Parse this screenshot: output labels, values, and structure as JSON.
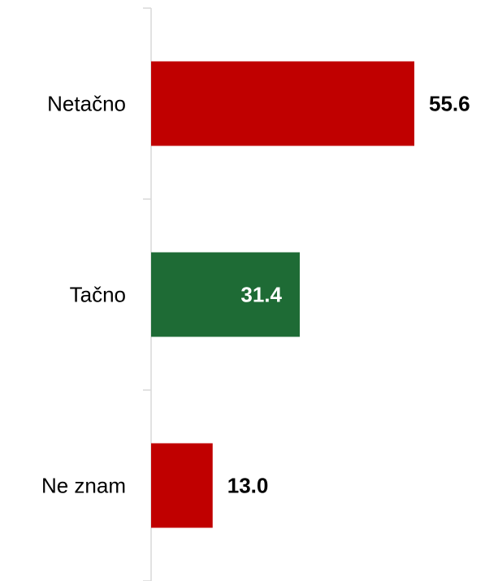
{
  "chart_data": {
    "type": "barh",
    "categories": [
      "Netačno",
      "Tačno",
      "Ne znam"
    ],
    "values": [
      55.6,
      31.4,
      13.0
    ],
    "value_labels": [
      "55.6",
      "31.4",
      "13.0"
    ],
    "colors": [
      "#c00000",
      "#1e6b35",
      "#c00000"
    ],
    "label_positions": [
      "outside",
      "inside",
      "outside"
    ]
  }
}
